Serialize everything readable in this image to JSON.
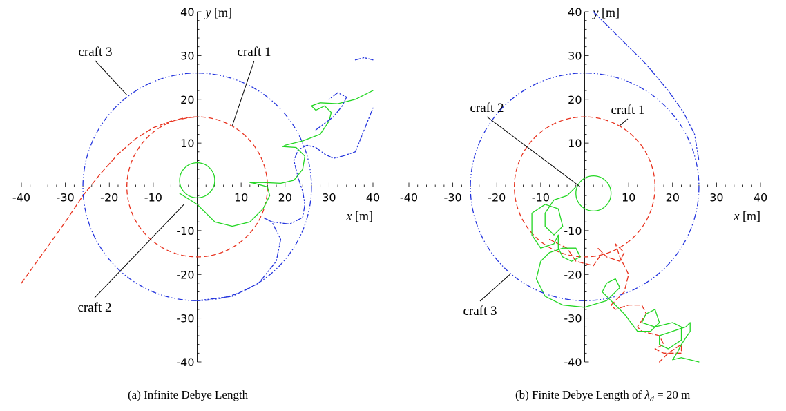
{
  "chart_data": [
    {
      "type": "line",
      "caption": "(a) Infinite Debye Length",
      "xlabel_var": "x",
      "xlabel_unit": "[m]",
      "ylabel_var": "y",
      "ylabel_unit": "[m]",
      "xlim": [
        -40,
        40
      ],
      "ylim": [
        -40,
        40
      ],
      "xticks": [
        -40,
        -30,
        -20,
        -10,
        10,
        20,
        30,
        40
      ],
      "yticks": [
        -40,
        -30,
        -20,
        -10,
        10,
        20,
        30,
        40
      ],
      "colors": {
        "craft1": "#e8321e",
        "craft2": "#22d622",
        "craft3": "#2233dd"
      },
      "series": [
        {
          "name": "craft 1",
          "style": "dashed",
          "trajectory": [
            [
              -40,
              -22
            ],
            [
              -35,
              -15
            ],
            [
              -30,
              -8
            ],
            [
              -26,
              -2
            ],
            [
              -22,
              3
            ],
            [
              -18,
              7.5
            ],
            [
              -14,
              11
            ],
            [
              -10,
              13.5
            ],
            [
              -6,
              15
            ],
            [
              -2,
              15.8
            ],
            [
              0,
              16
            ]
          ],
          "circle": {
            "cx": 0,
            "cy": 0,
            "r": 16
          }
        },
        {
          "name": "craft 2",
          "style": "solid",
          "circle": {
            "cx": 0,
            "cy": 1.5,
            "r": 4
          },
          "trajectory": [
            [
              -4,
              -1.5
            ],
            [
              0,
              -4
            ],
            [
              4,
              -8
            ],
            [
              8,
              -9
            ],
            [
              12,
              -8
            ],
            [
              15,
              -5
            ],
            [
              16.5,
              -2
            ],
            [
              16,
              0
            ],
            [
              13,
              0.8
            ],
            [
              12,
              1
            ],
            [
              15,
              1
            ],
            [
              19,
              0.8
            ],
            [
              22,
              1.5
            ],
            [
              24,
              4
            ],
            [
              24.5,
              7
            ],
            [
              22.5,
              9
            ],
            [
              19.5,
              9.2
            ],
            [
              20,
              9.5
            ],
            [
              24,
              10.5
            ],
            [
              28,
              12
            ],
            [
              30,
              15
            ],
            [
              30.5,
              17
            ],
            [
              29,
              18.5
            ],
            [
              27,
              17.5
            ],
            [
              26,
              18.5
            ],
            [
              28,
              19.2
            ],
            [
              32,
              19
            ],
            [
              36,
              20
            ],
            [
              40,
              22
            ]
          ]
        },
        {
          "name": "craft 3",
          "style": "dashdot",
          "circle": {
            "cx": 0,
            "cy": 0,
            "r": 26
          },
          "trajectory": [
            [
              0,
              -26
            ],
            [
              8,
              -25
            ],
            [
              14,
              -22
            ],
            [
              18,
              -17
            ],
            [
              19,
              -12
            ],
            [
              17,
              -8
            ],
            [
              15,
              -7
            ],
            [
              17,
              -8
            ],
            [
              21,
              -8.5
            ],
            [
              24,
              -7
            ],
            [
              24.5,
              -4
            ],
            [
              24,
              -1
            ],
            [
              23,
              2
            ],
            [
              22,
              6
            ],
            [
              23,
              8.5
            ],
            [
              25,
              9.5
            ],
            [
              27,
              9
            ],
            [
              29,
              7.5
            ],
            [
              31,
              6.5
            ],
            [
              33,
              7
            ],
            [
              36,
              8
            ],
            [
              40,
              18
            ]
          ],
          "trajectory2": [
            [
              27,
              13
            ],
            [
              31,
              16
            ],
            [
              33,
              18.5
            ],
            [
              34,
              20.5
            ],
            [
              32,
              21.5
            ],
            [
              30,
              20
            ]
          ],
          "trajectory3": [
            [
              36,
              29
            ],
            [
              38,
              29.5
            ],
            [
              40,
              29
            ]
          ]
        }
      ],
      "labels": [
        {
          "text": "craft 1",
          "target": [
            8,
            14
          ]
        },
        {
          "text": "craft 2",
          "target": [
            -3,
            -4
          ]
        },
        {
          "text": "craft 3",
          "target": [
            -16,
            21
          ]
        }
      ]
    },
    {
      "type": "line",
      "caption_pre": "(b) Finite Debye Length of ",
      "caption_var": "λ",
      "caption_sub": "d",
      "caption_post": " = 20 m",
      "xlabel_var": "x",
      "xlabel_unit": "[m]",
      "ylabel_var": "y",
      "ylabel_unit": "[m]",
      "xlim": [
        -40,
        40
      ],
      "ylim": [
        -40,
        40
      ],
      "xticks": [
        -40,
        -30,
        -20,
        -10,
        10,
        20,
        30,
        40
      ],
      "yticks": [
        -40,
        -30,
        -20,
        -10,
        10,
        20,
        30,
        40
      ],
      "colors": {
        "craft1": "#e8321e",
        "craft2": "#22d622",
        "craft3": "#2233dd"
      },
      "series": [
        {
          "name": "craft 1",
          "style": "dashed",
          "circle": {
            "cx": 0,
            "cy": 0,
            "r": 16
          },
          "trajectory": [
            [
              -8,
              -12
            ],
            [
              -4,
              -14
            ],
            [
              -2,
              -17
            ],
            [
              2,
              -18
            ],
            [
              4,
              -15
            ],
            [
              3,
              -14
            ],
            [
              5,
              -16
            ],
            [
              8,
              -17
            ],
            [
              9,
              -15
            ],
            [
              7,
              -13
            ],
            [
              8,
              -16
            ],
            [
              10,
              -20
            ],
            [
              9,
              -24
            ],
            [
              6,
              -27
            ],
            [
              7,
              -28
            ],
            [
              10,
              -27
            ],
            [
              13,
              -27
            ],
            [
              14,
              -29
            ],
            [
              12,
              -32
            ],
            [
              13,
              -33
            ],
            [
              17,
              -34
            ],
            [
              18,
              -36
            ],
            [
              16,
              -37
            ],
            [
              18,
              -38
            ],
            [
              22,
              -38
            ],
            [
              22,
              -36
            ],
            [
              19,
              -38
            ],
            [
              17,
              -40
            ]
          ]
        },
        {
          "name": "craft 2",
          "style": "solid",
          "circle": {
            "cx": 2,
            "cy": -1.5,
            "r": 4
          },
          "trajectory": [
            [
              -2,
              0
            ],
            [
              -4,
              -2
            ],
            [
              -7,
              -3
            ],
            [
              -9,
              -6
            ],
            [
              -9,
              -9
            ],
            [
              -7,
              -11
            ],
            [
              -5,
              -9
            ],
            [
              -6,
              -5
            ],
            [
              -9,
              -4
            ],
            [
              -12,
              -6
            ],
            [
              -12,
              -11
            ],
            [
              -10,
              -14
            ],
            [
              -7,
              -13
            ],
            [
              -6,
              -11
            ],
            [
              -6,
              -14
            ],
            [
              -5,
              -16
            ],
            [
              -3,
              -17
            ],
            [
              -1,
              -16
            ],
            [
              -2,
              -14
            ],
            [
              -5,
              -14
            ],
            [
              -8,
              -15
            ],
            [
              -10,
              -17
            ],
            [
              -11,
              -21
            ],
            [
              -9,
              -25
            ],
            [
              -5,
              -27
            ],
            [
              0,
              -27.5
            ],
            [
              5,
              -26
            ],
            [
              8,
              -23
            ],
            [
              7,
              -21
            ],
            [
              5,
              -22
            ],
            [
              4,
              -24
            ],
            [
              6,
              -26
            ],
            [
              9,
              -29
            ],
            [
              12,
              -33
            ],
            [
              15,
              -33
            ],
            [
              17,
              -31
            ],
            [
              16,
              -28
            ],
            [
              14,
              -29
            ],
            [
              13,
              -31
            ],
            [
              16,
              -32
            ],
            [
              20,
              -31
            ],
            [
              22,
              -32
            ],
            [
              22,
              -35
            ],
            [
              19,
              -37
            ],
            [
              17,
              -36
            ],
            [
              17,
              -34
            ],
            [
              20,
              -33
            ],
            [
              23,
              -32
            ],
            [
              24,
              -31
            ],
            [
              24,
              -33
            ],
            [
              22,
              -36
            ],
            [
              21,
              -38
            ],
            [
              20,
              -39.5
            ],
            [
              22,
              -39
            ],
            [
              26,
              -40
            ]
          ]
        },
        {
          "name": "craft 3",
          "style": "dashdot",
          "circle": {
            "cx": 0,
            "cy": 0,
            "r": 26
          },
          "trajectory": [
            [
              2,
              40
            ],
            [
              8,
              34
            ],
            [
              14,
              28
            ],
            [
              19,
              22
            ],
            [
              22.5,
              17
            ],
            [
              25,
              12
            ],
            [
              26,
              6
            ]
          ]
        }
      ],
      "labels": [
        {
          "text": "craft 1",
          "target": [
            8,
            14
          ]
        },
        {
          "text": "craft 2",
          "target": [
            -1,
            0
          ]
        },
        {
          "text": "craft 3",
          "target": [
            -17,
            -20
          ]
        }
      ]
    }
  ]
}
